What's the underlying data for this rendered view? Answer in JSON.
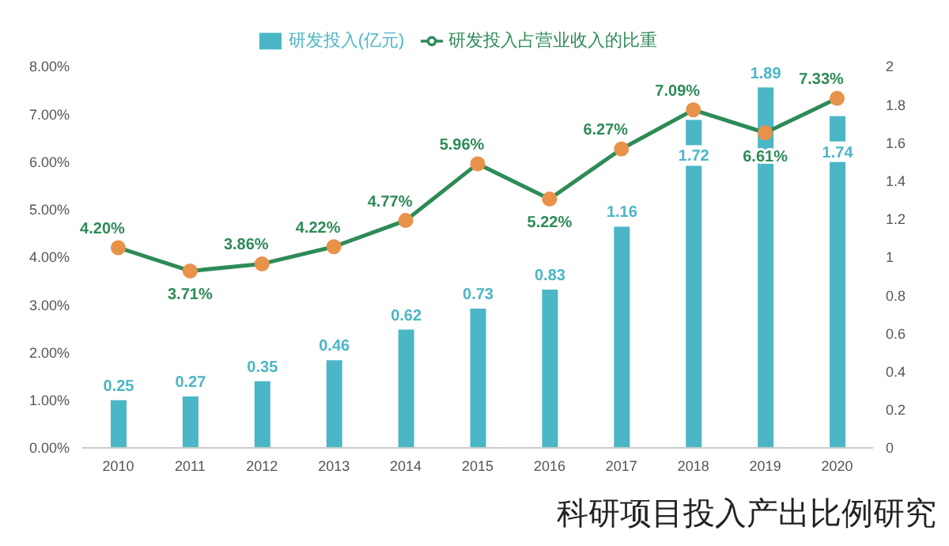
{
  "chart_data": {
    "type": "bar",
    "categories": [
      "2010",
      "2011",
      "2012",
      "2013",
      "2014",
      "2015",
      "2016",
      "2017",
      "2018",
      "2019",
      "2020"
    ],
    "series": [
      {
        "name": "研发投入(亿元)",
        "axis": "y2",
        "color": "#4bb6c6",
        "values": [
          0.25,
          0.27,
          0.35,
          0.46,
          0.62,
          0.73,
          0.83,
          1.16,
          1.72,
          1.89,
          1.74
        ],
        "value_labels": [
          "0.25",
          "0.27",
          "0.35",
          "0.46",
          "0.62",
          "0.73",
          "0.83",
          "1.16",
          "1.72",
          "1.89",
          "1.74"
        ]
      },
      {
        "name": "研发投入占营业收入的比重",
        "type": "line",
        "axis": "y",
        "color": "#2e8b57",
        "marker": "circle",
        "values": [
          4.2,
          3.71,
          3.86,
          4.22,
          4.77,
          5.96,
          5.22,
          6.27,
          7.09,
          6.61,
          7.33
        ],
        "value_labels": [
          "4.20%",
          "3.71%",
          "3.86%",
          "4.22%",
          "4.77%",
          "5.96%",
          "5.22%",
          "6.27%",
          "7.09%",
          "6.61%",
          "7.33%"
        ]
      }
    ],
    "ylim": [
      0,
      8
    ],
    "yticks": [
      {
        "value": 0,
        "label": "0.00%"
      },
      {
        "value": 1,
        "label": "1.00%"
      },
      {
        "value": 2,
        "label": "2.00%"
      },
      {
        "value": 3,
        "label": "3.00%"
      },
      {
        "value": 4,
        "label": "4.00%"
      },
      {
        "value": 5,
        "label": "5.00%"
      },
      {
        "value": 6,
        "label": "6.00%"
      },
      {
        "value": 7,
        "label": "7.00%"
      },
      {
        "value": 8,
        "label": "8.00%"
      }
    ],
    "y2lim": [
      0,
      2
    ],
    "y2ticks": [
      0,
      0.2,
      0.4,
      0.6,
      0.8,
      1,
      1.2,
      1.4,
      1.6,
      1.8,
      2
    ],
    "legend": "top",
    "grid": false,
    "annotations": [
      "科研项目投入产出比例研究"
    ]
  }
}
